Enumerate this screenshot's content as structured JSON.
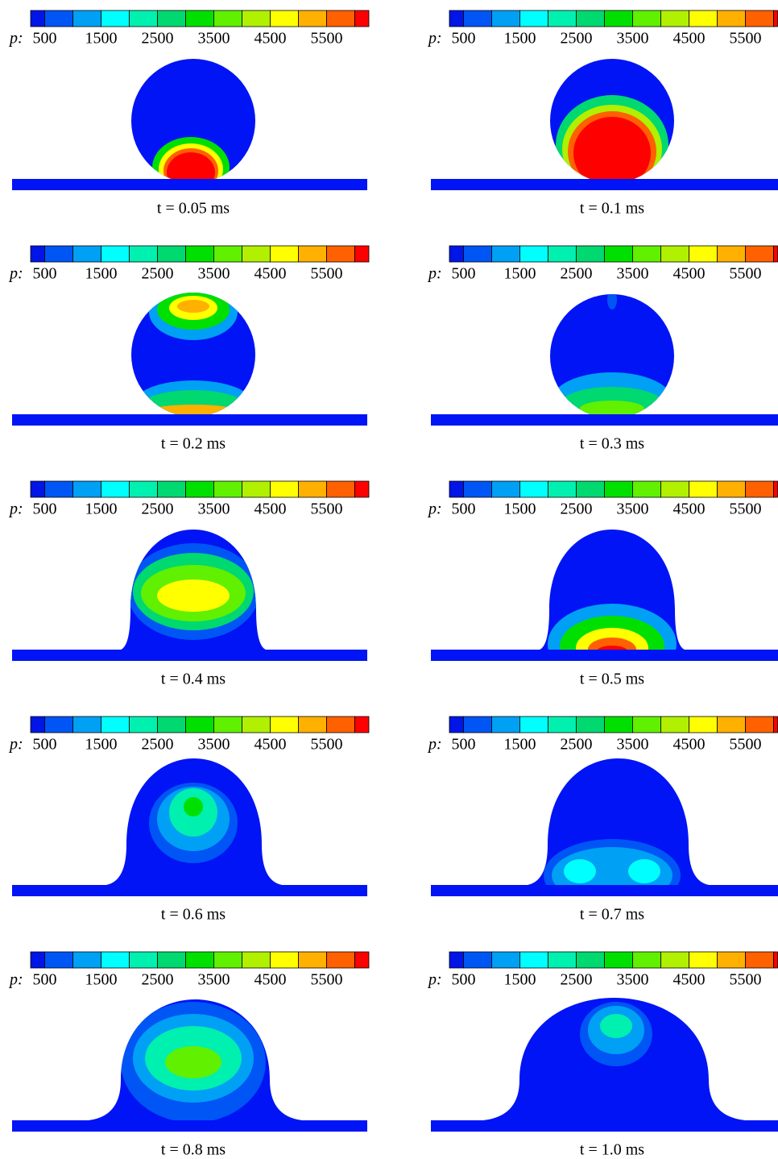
{
  "colorbar": {
    "label": "p:",
    "lim": [
      250,
      6250
    ],
    "levels": [
      500,
      1000,
      1500,
      2000,
      2500,
      3000,
      3500,
      4000,
      4500,
      5000,
      5500,
      6000
    ],
    "colors": [
      "#0015e6",
      "#0055f5",
      "#00a0f5",
      "#00ffff",
      "#00f0b0",
      "#00d870",
      "#00e000",
      "#60f000",
      "#b0f000",
      "#ffff00",
      "#ffb000",
      "#ff6000",
      "#ff0000"
    ],
    "ticks": [
      500,
      1500,
      2500,
      3500,
      4500,
      5500
    ]
  },
  "panels": [
    {
      "caption": "t = 0.05 ms"
    },
    {
      "caption": "t = 0.1 ms"
    },
    {
      "caption": "t = 0.2 ms"
    },
    {
      "caption": "t = 0.3 ms"
    },
    {
      "caption": "t = 0.4 ms"
    },
    {
      "caption": "t = 0.5 ms"
    },
    {
      "caption": "t = 0.6 ms"
    },
    {
      "caption": "t = 0.7 ms"
    },
    {
      "caption": "t = 0.8 ms"
    },
    {
      "caption": "t = 1.0 ms"
    }
  ]
}
